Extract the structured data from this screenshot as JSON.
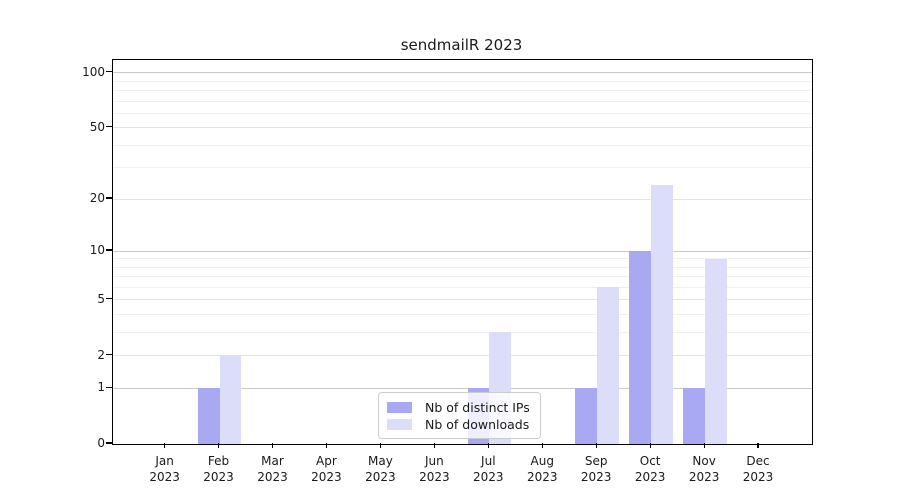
{
  "chart_data": {
    "type": "bar",
    "title": "sendmailR 2023",
    "x_categories": [
      "Jan",
      "Feb",
      "Mar",
      "Apr",
      "May",
      "Jun",
      "Jul",
      "Aug",
      "Sep",
      "Oct",
      "Nov",
      "Dec"
    ],
    "x_year": "2023",
    "series": [
      {
        "name": "Nb of distinct IPs",
        "color": "#a9a9f3",
        "values": [
          0,
          1,
          0,
          0,
          0,
          0,
          1,
          0,
          1,
          10,
          1,
          0
        ]
      },
      {
        "name": "Nb of downloads",
        "color": "#dcddf9",
        "values": [
          0,
          2,
          0,
          0,
          0,
          0,
          3,
          0,
          6,
          24,
          9,
          0
        ]
      }
    ],
    "yscale": "log1p",
    "ylim": [
      0,
      117
    ],
    "y_tick_values": [
      0,
      1,
      2,
      5,
      10,
      20,
      50,
      100
    ],
    "y_tick_labels": [
      "0",
      "1",
      "2",
      "5",
      "10",
      "20",
      "50",
      "100"
    ],
    "y_decade_gridlines": [
      1,
      10,
      100
    ],
    "y_submajor_gridlines": [
      2,
      5,
      20,
      50
    ],
    "y_minor_gridlines": [
      3,
      4,
      6,
      7,
      8,
      9,
      30,
      40,
      60,
      70,
      80,
      90
    ],
    "grid": true,
    "legend_position": "lower center"
  },
  "styles": {
    "bar_series_0": "#a9a9f3",
    "bar_series_1": "#dcddf9",
    "grid_decade_color": "#c9c9c9",
    "grid_submajor_color": "#e3e3e3",
    "grid_minor_color": "#f0f0f0",
    "spine_color": "#000000",
    "text_color": "#1a1a1a"
  }
}
